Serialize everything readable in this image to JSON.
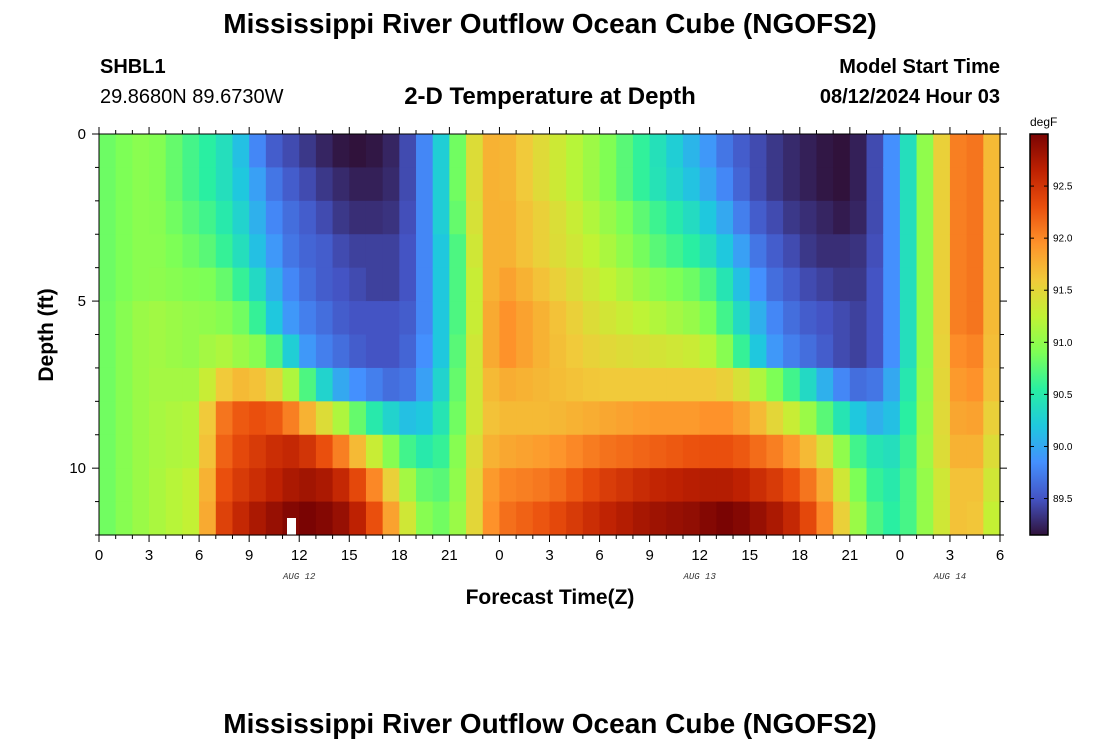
{
  "header": {
    "title": "Mississippi River Outflow Ocean Cube (NGOFS2)",
    "station": "SHBL1",
    "coordinates": "29.8680N  89.6730W",
    "subtitle": "2-D Temperature at Depth",
    "model_start_label": "Model Start Time",
    "model_start_value": "08/12/2024 Hour 03"
  },
  "footer": {
    "title": "Mississippi River Outflow Ocean Cube (NGOFS2)"
  },
  "chart_data": {
    "type": "heatmap",
    "title": "2-D Temperature at Depth",
    "xlabel": "Forecast Time(Z)",
    "ylabel": "Depth (ft)",
    "x_range_hours": [
      0,
      54
    ],
    "x_tick_labels": [
      "0",
      "3",
      "6",
      "9",
      "12",
      "15",
      "18",
      "21",
      "0",
      "3",
      "6",
      "9",
      "12",
      "15",
      "18",
      "21",
      "0",
      "3",
      "6"
    ],
    "date_labels": [
      {
        "text": "AUG 12",
        "hour": 12
      },
      {
        "text": "AUG 13",
        "hour": 36
      },
      {
        "text": "AUG 14",
        "hour": 51
      }
    ],
    "y_range": [
      0,
      12
    ],
    "y_ticks": [
      0,
      5,
      10
    ],
    "y_inverted": true,
    "colorbar": {
      "unit": "degF",
      "min": 89.15,
      "max": 93.0,
      "ticks": [
        "89.5",
        "90.0",
        "90.5",
        "91.0",
        "91.5",
        "92.0",
        "92.5"
      ],
      "colors": [
        "#30123b",
        "#4454c4",
        "#4490fe",
        "#1fc8de",
        "#29efa2",
        "#7dff56",
        "#c1f334",
        "#f1ca3a",
        "#fe922a",
        "#ea4f0d",
        "#be2102",
        "#7a0403"
      ]
    },
    "depth_levels_ft": [
      0.5,
      1.5,
      2.5,
      3.5,
      4.5,
      5.5,
      6.5,
      7.5,
      8.5,
      9.5,
      10.5,
      11.5
    ],
    "profile_hours": [
      0,
      3,
      6,
      7,
      8,
      9,
      10,
      11,
      12,
      13,
      14,
      15,
      16,
      17,
      18,
      19,
      20,
      21,
      22,
      23,
      24,
      27,
      30,
      33,
      36,
      37,
      38,
      39,
      40,
      41,
      42,
      43,
      44,
      45,
      46,
      47,
      48,
      50,
      52,
      54
    ],
    "temperature_degF": [
      [
        90.8,
        90.8,
        90.8,
        90.8,
        90.8,
        90.8,
        90.8,
        90.8,
        90.8,
        90.8,
        90.8,
        90.8
      ],
      [
        91.0,
        91.0,
        91.0,
        91.0,
        91.0,
        91.1,
        91.1,
        91.1,
        91.1,
        91.1,
        91.1,
        91.1
      ],
      [
        90.6,
        90.6,
        90.7,
        90.8,
        90.9,
        91.0,
        91.0,
        91.1,
        91.2,
        91.2,
        91.3,
        91.3
      ],
      [
        90.5,
        90.5,
        90.6,
        90.7,
        90.9,
        91.0,
        91.2,
        91.5,
        92.0,
        92.1,
        92.2,
        92.3
      ],
      [
        90.3,
        90.3,
        90.4,
        90.5,
        90.7,
        90.9,
        91.1,
        91.7,
        92.2,
        92.3,
        92.4,
        92.5
      ],
      [
        90.0,
        90.1,
        90.2,
        90.3,
        90.5,
        90.8,
        91.0,
        91.7,
        92.3,
        92.4,
        92.5,
        92.7
      ],
      [
        89.6,
        89.8,
        89.9,
        90.0,
        90.2,
        90.4,
        90.9,
        91.6,
        92.3,
        92.5,
        92.6,
        92.8
      ],
      [
        89.5,
        89.6,
        89.7,
        89.8,
        89.9,
        90.0,
        90.5,
        91.4,
        92.2,
        92.6,
        92.7,
        92.9
      ],
      [
        89.4,
        89.5,
        89.6,
        89.6,
        89.7,
        89.8,
        90.0,
        90.9,
        91.9,
        92.6,
        92.8,
        93.0
      ],
      [
        89.3,
        89.4,
        89.5,
        89.6,
        89.6,
        89.7,
        89.8,
        90.5,
        91.6,
        92.4,
        92.8,
        93.0
      ],
      [
        89.2,
        89.3,
        89.4,
        89.5,
        89.5,
        89.6,
        89.7,
        90.1,
        91.3,
        92.2,
        92.7,
        92.9
      ],
      [
        89.15,
        89.25,
        89.3,
        89.4,
        89.5,
        89.5,
        89.6,
        89.9,
        91.0,
        91.9,
        92.5,
        92.8
      ],
      [
        89.15,
        89.2,
        89.3,
        89.4,
        89.4,
        89.5,
        89.5,
        89.8,
        90.6,
        91.5,
        92.2,
        92.5
      ],
      [
        89.2,
        89.25,
        89.3,
        89.4,
        89.4,
        89.5,
        89.5,
        89.7,
        90.4,
        91.1,
        91.8,
        92.1
      ],
      [
        89.3,
        89.3,
        89.35,
        89.4,
        89.4,
        89.5,
        89.5,
        89.6,
        90.2,
        90.8,
        91.3,
        91.6
      ],
      [
        89.6,
        89.6,
        89.6,
        89.6,
        89.6,
        89.6,
        89.7,
        89.8,
        90.1,
        90.5,
        90.9,
        91.1
      ],
      [
        90.0,
        90.0,
        90.0,
        90.0,
        90.0,
        90.0,
        90.0,
        90.1,
        90.3,
        90.5,
        90.7,
        90.8
      ],
      [
        90.5,
        90.5,
        90.5,
        90.4,
        90.4,
        90.4,
        90.4,
        90.5,
        90.6,
        90.7,
        90.8,
        90.9
      ],
      [
        91.2,
        91.2,
        91.1,
        91.0,
        91.0,
        91.0,
        91.1,
        91.1,
        91.1,
        91.2,
        91.2,
        91.2
      ],
      [
        91.7,
        91.7,
        91.7,
        91.7,
        91.6,
        91.6,
        91.6,
        91.6,
        91.6,
        91.7,
        91.8,
        91.8
      ],
      [
        91.8,
        91.8,
        91.8,
        91.8,
        91.9,
        92.0,
        92.0,
        91.8,
        91.7,
        91.8,
        92.0,
        92.1
      ],
      [
        91.4,
        91.4,
        91.5,
        91.5,
        91.6,
        91.7,
        91.7,
        91.7,
        91.7,
        91.9,
        92.1,
        92.3
      ],
      [
        91.0,
        91.0,
        91.1,
        91.2,
        91.3,
        91.4,
        91.5,
        91.6,
        91.8,
        92.1,
        92.4,
        92.6
      ],
      [
        90.5,
        90.5,
        90.7,
        90.8,
        91.0,
        91.2,
        91.4,
        91.6,
        91.9,
        92.2,
        92.6,
        92.8
      ],
      [
        90.0,
        90.1,
        90.3,
        90.5,
        90.8,
        91.0,
        91.3,
        91.6,
        91.9,
        92.3,
        92.7,
        92.9
      ],
      [
        89.8,
        89.9,
        90.1,
        90.3,
        90.6,
        90.8,
        91.1,
        91.6,
        92.0,
        92.3,
        92.7,
        93.0
      ],
      [
        89.6,
        89.7,
        89.9,
        90.1,
        90.3,
        90.5,
        90.8,
        91.5,
        91.9,
        92.3,
        92.7,
        93.0
      ],
      [
        89.5,
        89.5,
        89.6,
        89.8,
        90.0,
        90.2,
        90.4,
        91.3,
        91.8,
        92.2,
        92.6,
        92.9
      ],
      [
        89.4,
        89.4,
        89.5,
        89.6,
        89.7,
        89.9,
        90.0,
        91.0,
        91.6,
        92.1,
        92.5,
        92.8
      ],
      [
        89.3,
        89.3,
        89.4,
        89.5,
        89.6,
        89.7,
        89.8,
        90.8,
        91.4,
        92.0,
        92.4,
        92.7
      ],
      [
        89.25,
        89.25,
        89.3,
        89.4,
        89.5,
        89.6,
        89.7,
        90.5,
        91.2,
        91.8,
        92.2,
        92.5
      ],
      [
        89.2,
        89.2,
        89.3,
        89.3,
        89.4,
        89.5,
        89.6,
        90.2,
        90.9,
        91.6,
        92.0,
        92.2
      ],
      [
        89.15,
        89.15,
        89.2,
        89.3,
        89.4,
        89.5,
        89.5,
        89.9,
        90.6,
        91.2,
        91.6,
        91.8
      ],
      [
        89.15,
        89.15,
        89.2,
        89.3,
        89.3,
        89.4,
        89.4,
        89.7,
        90.3,
        90.8,
        91.1,
        91.3
      ],
      [
        89.3,
        89.3,
        89.3,
        89.35,
        89.4,
        89.4,
        89.4,
        89.6,
        90.1,
        90.5,
        90.7,
        90.8
      ],
      [
        89.6,
        89.6,
        89.6,
        89.6,
        89.6,
        89.6,
        89.6,
        89.8,
        90.0,
        90.4,
        90.5,
        90.6
      ],
      [
        90.1,
        90.1,
        90.1,
        90.1,
        90.1,
        90.1,
        90.1,
        90.2,
        90.3,
        90.4,
        90.5,
        90.5
      ],
      [
        91.3,
        91.3,
        91.3,
        91.3,
        91.3,
        91.3,
        91.3,
        91.3,
        91.3,
        91.3,
        91.2,
        91.2
      ],
      [
        92.3,
        92.3,
        92.3,
        92.3,
        92.3,
        92.3,
        92.2,
        92.1,
        92.0,
        91.9,
        91.8,
        91.8
      ],
      [
        91.5,
        91.5,
        91.5,
        91.5,
        91.5,
        91.5,
        91.5,
        91.5,
        91.4,
        91.3,
        91.2,
        91.1
      ]
    ]
  }
}
